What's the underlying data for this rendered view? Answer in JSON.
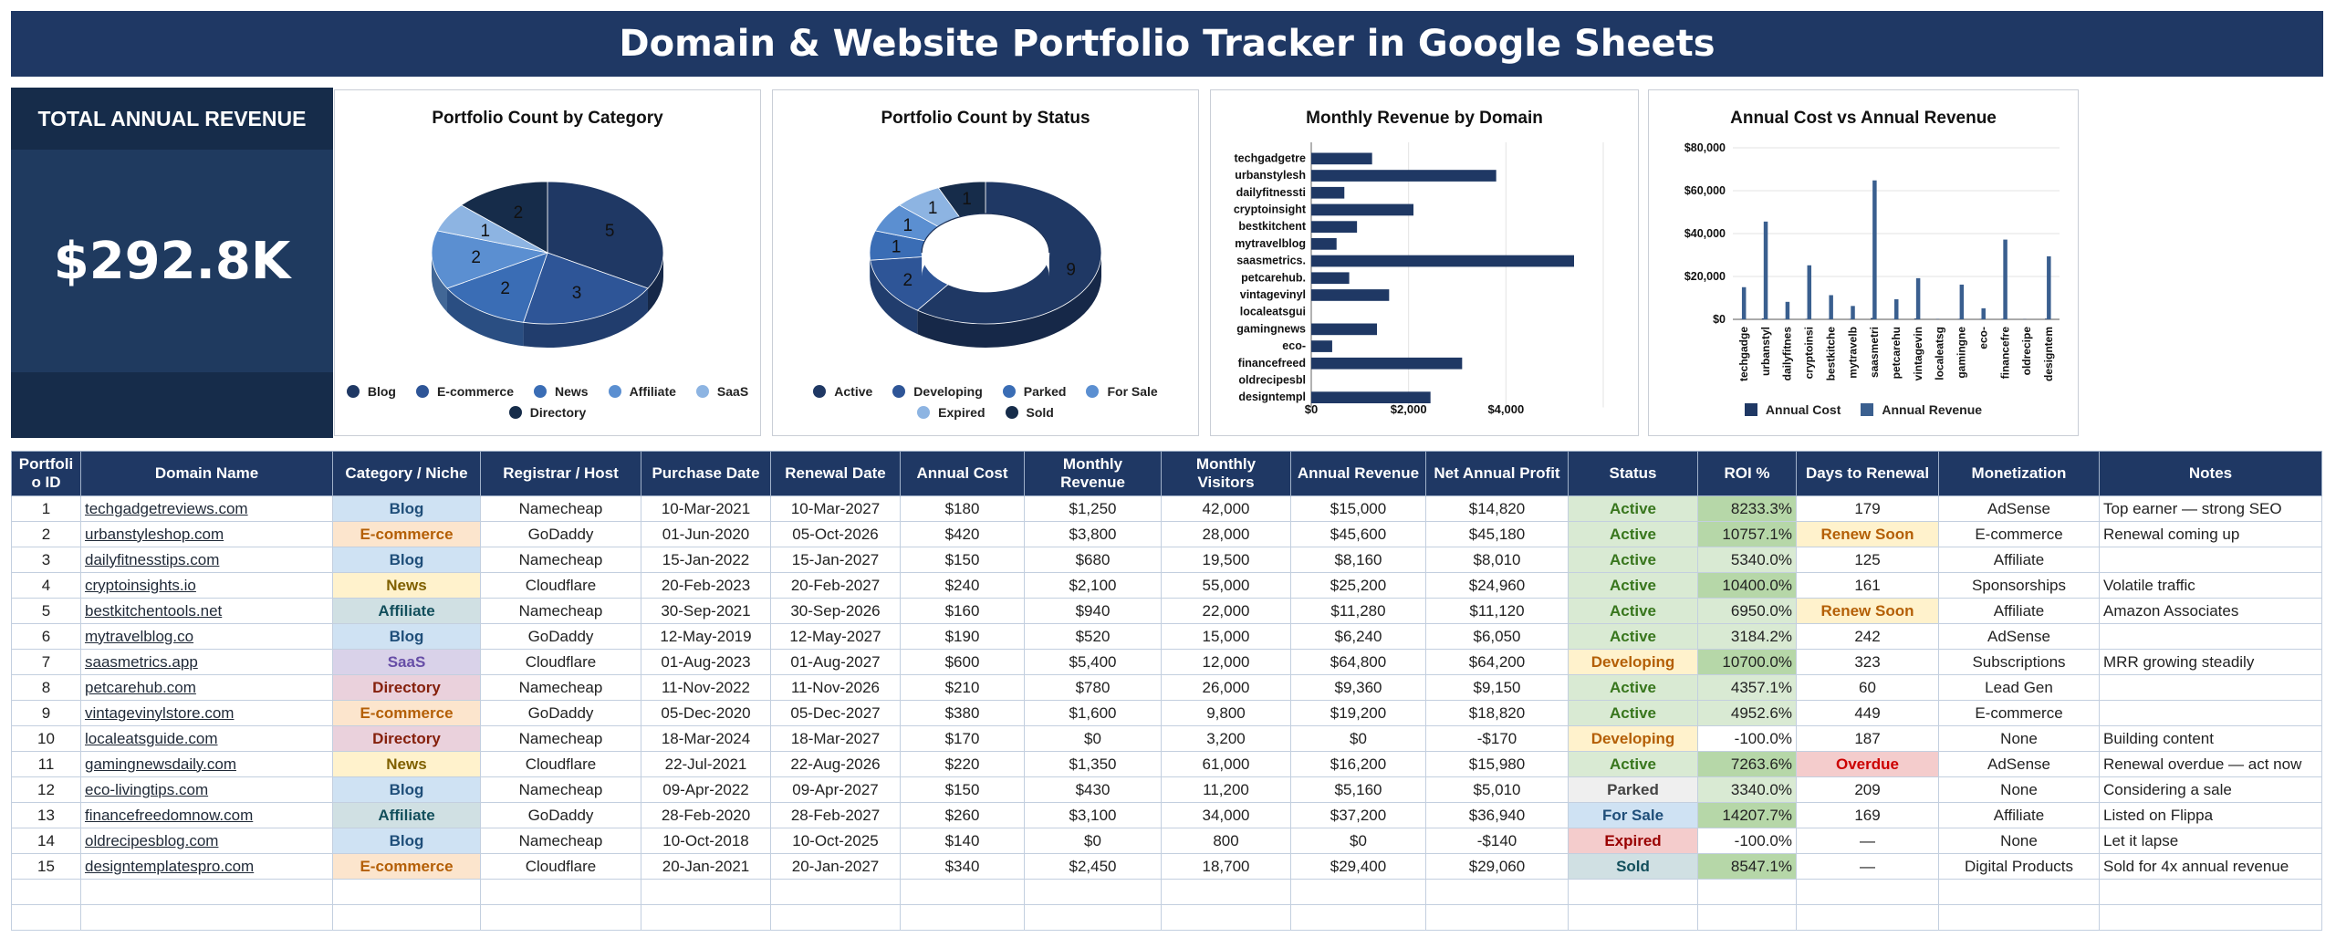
{
  "title": "Domain & Website Portfolio Tracker in Google Sheets",
  "kpi": {
    "label": "TOTAL ANNUAL REVENUE",
    "value": "$292.8K"
  },
  "charts": {
    "category": {
      "title": "Portfolio Count by Category",
      "legend": [
        {
          "label": "Blog",
          "color": "#1f3864"
        },
        {
          "label": "E-commerce",
          "color": "#2e5597"
        },
        {
          "label": "News",
          "color": "#3a6db5"
        },
        {
          "label": "Affiliate",
          "color": "#5b8fd1"
        },
        {
          "label": "SaaS",
          "color": "#8db4e2"
        },
        {
          "label": "Directory",
          "color": "#162c4a"
        }
      ]
    },
    "status": {
      "title": "Portfolio Count by Status",
      "legend": [
        {
          "label": "Active",
          "color": "#1f3864"
        },
        {
          "label": "Developing",
          "color": "#2e5597"
        },
        {
          "label": "Parked",
          "color": "#3a6db5"
        },
        {
          "label": "For Sale",
          "color": "#5b8fd1"
        },
        {
          "label": "Expired",
          "color": "#8db4e2"
        },
        {
          "label": "Sold",
          "color": "#162c4a"
        }
      ]
    },
    "monthly": {
      "title": "Monthly Revenue by Domain",
      "ticks": [
        "$0",
        "$2,000",
        "$4,000"
      ]
    },
    "annual": {
      "title": "Annual Cost vs Annual Revenue",
      "yticks": [
        "$80,000",
        "$60,000",
        "$40,000",
        "$20,000",
        "$0"
      ],
      "legend": [
        {
          "label": "Annual Cost",
          "color": "#1f3864"
        },
        {
          "label": "Annual Revenue",
          "color": "#3a5f8f"
        }
      ]
    }
  },
  "chart_data": [
    {
      "type": "pie",
      "title": "Portfolio Count by Category",
      "categories": [
        "Blog",
        "E-commerce",
        "News",
        "Affiliate",
        "SaaS",
        "Directory"
      ],
      "values": [
        5,
        3,
        2,
        2,
        1,
        2
      ],
      "style": "3d"
    },
    {
      "type": "pie",
      "title": "Portfolio Count by Status",
      "categories": [
        "Active",
        "Developing",
        "Parked",
        "For Sale",
        "Expired",
        "Sold"
      ],
      "values": [
        9,
        2,
        1,
        1,
        1,
        1
      ],
      "style": "3d-donut"
    },
    {
      "type": "bar",
      "orientation": "horizontal",
      "title": "Monthly Revenue by Domain",
      "categories": [
        "techgadgetre",
        "urbanstylesh",
        "dailyfitnessti",
        "cryptoinsight",
        "bestkitchent",
        "mytravelblog",
        "saasmetrics.",
        "petcarehub.",
        "vintagevinyl",
        "localeatsgui",
        "gamingnews",
        "eco-",
        "financefreed",
        "oldrecipesbl",
        "designtempl"
      ],
      "values": [
        1250,
        3800,
        680,
        2100,
        940,
        520,
        5400,
        780,
        1600,
        0,
        1350,
        430,
        3100,
        0,
        2450
      ],
      "xlim": [
        0,
        6000
      ]
    },
    {
      "type": "bar",
      "title": "Annual Cost vs Annual Revenue",
      "categories": [
        "techgadge",
        "urbanstyl",
        "dailyfitnes",
        "cryptoinsi",
        "bestkitche",
        "mytravelb",
        "saasmetri",
        "petcarehu",
        "vintagevin",
        "localeatsg",
        "gamingne",
        "eco-",
        "financefre",
        "oldrecipe",
        "designtem"
      ],
      "series": [
        {
          "name": "Annual Cost",
          "values": [
            180,
            420,
            150,
            240,
            160,
            190,
            600,
            210,
            380,
            170,
            220,
            150,
            260,
            140,
            340
          ]
        },
        {
          "name": "Annual Revenue",
          "values": [
            15000,
            45600,
            8160,
            25200,
            11280,
            6240,
            64800,
            9360,
            19200,
            0,
            16200,
            5160,
            37200,
            0,
            29400
          ]
        }
      ],
      "ylim": [
        0,
        80000
      ]
    }
  ],
  "table": {
    "headers": [
      "Portfoli\no ID",
      "Domain Name",
      "Category / Niche",
      "Registrar / Host",
      "Purchase Date",
      "Renewal Date",
      "Annual Cost",
      "Monthly\nRevenue",
      "Monthly\nVisitors",
      "Annual Revenue",
      "Net Annual Profit",
      "Status",
      "ROI %",
      "Days to Renewal",
      "Monetization",
      "Notes"
    ],
    "rows": [
      [
        "1",
        "techgadgetreviews.com",
        "Blog",
        "Namecheap",
        "10-Mar-2021",
        "10-Mar-2027",
        "$180",
        "$1,250",
        "42,000",
        "$15,000",
        "$14,820",
        "Active",
        "8233.3%",
        "179",
        "AdSense",
        "Top earner — strong SEO"
      ],
      [
        "2",
        "urbanstyleshop.com",
        "E-commerce",
        "GoDaddy",
        "01-Jun-2020",
        "05-Oct-2026",
        "$420",
        "$3,800",
        "28,000",
        "$45,600",
        "$45,180",
        "Active",
        "10757.1%",
        "Renew Soon",
        "E-commerce",
        "Renewal coming up"
      ],
      [
        "3",
        "dailyfitnesstips.com",
        "Blog",
        "Namecheap",
        "15-Jan-2022",
        "15-Jan-2027",
        "$150",
        "$680",
        "19,500",
        "$8,160",
        "$8,010",
        "Active",
        "5340.0%",
        "125",
        "Affiliate",
        ""
      ],
      [
        "4",
        "cryptoinsights.io",
        "News",
        "Cloudflare",
        "20-Feb-2023",
        "20-Feb-2027",
        "$240",
        "$2,100",
        "55,000",
        "$25,200",
        "$24,960",
        "Active",
        "10400.0%",
        "161",
        "Sponsorships",
        "Volatile traffic"
      ],
      [
        "5",
        "bestkitchentools.net",
        "Affiliate",
        "Namecheap",
        "30-Sep-2021",
        "30-Sep-2026",
        "$160",
        "$940",
        "22,000",
        "$11,280",
        "$11,120",
        "Active",
        "6950.0%",
        "Renew Soon",
        "Affiliate",
        "Amazon Associates"
      ],
      [
        "6",
        "mytravelblog.co",
        "Blog",
        "GoDaddy",
        "12-May-2019",
        "12-May-2027",
        "$190",
        "$520",
        "15,000",
        "$6,240",
        "$6,050",
        "Active",
        "3184.2%",
        "242",
        "AdSense",
        ""
      ],
      [
        "7",
        "saasmetrics.app",
        "SaaS",
        "Cloudflare",
        "01-Aug-2023",
        "01-Aug-2027",
        "$600",
        "$5,400",
        "12,000",
        "$64,800",
        "$64,200",
        "Developing",
        "10700.0%",
        "323",
        "Subscriptions",
        "MRR growing steadily"
      ],
      [
        "8",
        "petcarehub.com",
        "Directory",
        "Namecheap",
        "11-Nov-2022",
        "11-Nov-2026",
        "$210",
        "$780",
        "26,000",
        "$9,360",
        "$9,150",
        "Active",
        "4357.1%",
        "60",
        "Lead Gen",
        ""
      ],
      [
        "9",
        "vintagevinylstore.com",
        "E-commerce",
        "GoDaddy",
        "05-Dec-2020",
        "05-Dec-2027",
        "$380",
        "$1,600",
        "9,800",
        "$19,200",
        "$18,820",
        "Active",
        "4952.6%",
        "449",
        "E-commerce",
        ""
      ],
      [
        "10",
        "localeatsguide.com",
        "Directory",
        "Namecheap",
        "18-Mar-2024",
        "18-Mar-2027",
        "$170",
        "$0",
        "3,200",
        "$0",
        "-$170",
        "Developing",
        "-100.0%",
        "187",
        "None",
        "Building content"
      ],
      [
        "11",
        "gamingnewsdaily.com",
        "News",
        "Cloudflare",
        "22-Jul-2021",
        "22-Aug-2026",
        "$220",
        "$1,350",
        "61,000",
        "$16,200",
        "$15,980",
        "Active",
        "7263.6%",
        "Overdue",
        "AdSense",
        "Renewal overdue — act now"
      ],
      [
        "12",
        "eco-livingtips.com",
        "Blog",
        "Namecheap",
        "09-Apr-2022",
        "09-Apr-2027",
        "$150",
        "$430",
        "11,200",
        "$5,160",
        "$5,010",
        "Parked",
        "3340.0%",
        "209",
        "None",
        "Considering a sale"
      ],
      [
        "13",
        "financefreedomnow.com",
        "Affiliate",
        "GoDaddy",
        "28-Feb-2020",
        "28-Feb-2027",
        "$260",
        "$3,100",
        "34,000",
        "$37,200",
        "$36,940",
        "For Sale",
        "14207.7%",
        "169",
        "Affiliate",
        "Listed on Flippa"
      ],
      [
        "14",
        "oldrecipesblog.com",
        "Blog",
        "Namecheap",
        "10-Oct-2018",
        "10-Oct-2025",
        "$140",
        "$0",
        "800",
        "$0",
        "-$140",
        "Expired",
        "-100.0%",
        "—",
        "None",
        "Let it lapse"
      ],
      [
        "15",
        "designtemplatespro.com",
        "E-commerce",
        "Cloudflare",
        "20-Jan-2021",
        "20-Jan-2027",
        "$340",
        "$2,450",
        "18,700",
        "$29,400",
        "$29,060",
        "Sold",
        "8547.1%",
        "—",
        "Digital Products",
        "Sold for 4x annual revenue"
      ]
    ]
  }
}
